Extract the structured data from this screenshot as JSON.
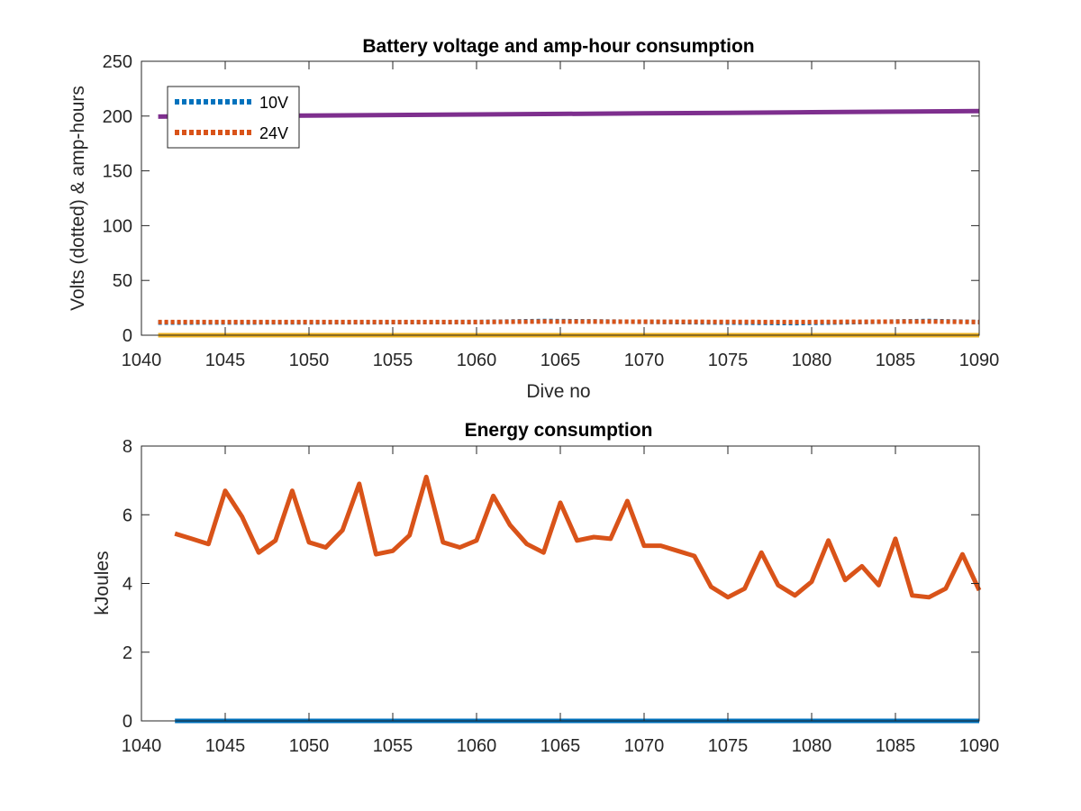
{
  "chart_data": [
    {
      "type": "line",
      "title": "Battery voltage and amp-hour consumption",
      "xlabel": "Dive no",
      "ylabel": "Volts (dotted) & amp-hours",
      "xlim": [
        1040,
        1090
      ],
      "ylim": [
        0,
        250
      ],
      "xticks": [
        "1040",
        "1045",
        "1050",
        "1055",
        "1060",
        "1065",
        "1070",
        "1075",
        "1080",
        "1085",
        "1090"
      ],
      "yticks": [
        "0",
        "50",
        "100",
        "150",
        "200",
        "250"
      ],
      "grid": false,
      "legend_position": "top-left",
      "series": [
        {
          "name": "10V",
          "color": "#0072BD",
          "style": "dotted",
          "in_legend": true,
          "x": [
            1041,
            1060,
            1064,
            1079,
            1087,
            1090
          ],
          "y": [
            11.5,
            12,
            13,
            11,
            13,
            12
          ]
        },
        {
          "name": "24V",
          "color": "#D95319",
          "style": "dotted",
          "in_legend": true,
          "x": [
            1041,
            1060,
            1064,
            1079,
            1087,
            1090
          ],
          "y": [
            12,
            12,
            12.5,
            12,
            12.5,
            12
          ]
        },
        {
          "color": "#EDB120",
          "style": "solid",
          "in_legend": false,
          "x": [
            1041,
            1090
          ],
          "y": [
            0,
            0
          ]
        },
        {
          "color": "#7E2F8E",
          "style": "solid",
          "in_legend": false,
          "x": [
            1041,
            1045,
            1050,
            1055,
            1060,
            1065,
            1070,
            1075,
            1080,
            1085,
            1090
          ],
          "y": [
            199.5,
            200,
            200.5,
            201,
            201.5,
            202,
            202.5,
            203,
            203.5,
            204,
            204.5
          ]
        }
      ]
    },
    {
      "type": "line",
      "title": "Energy consumption",
      "xlabel": "",
      "ylabel": "kJoules",
      "xlim": [
        1040,
        1090
      ],
      "ylim": [
        0,
        8
      ],
      "xticks": [
        "1040",
        "1045",
        "1050",
        "1055",
        "1060",
        "1065",
        "1070",
        "1075",
        "1080",
        "1085",
        "1090"
      ],
      "yticks": [
        "0",
        "2",
        "4",
        "6",
        "8"
      ],
      "grid": false,
      "series": [
        {
          "color": "#0072BD",
          "style": "solid",
          "x": [
            1042,
            1090
          ],
          "y": [
            0,
            0
          ]
        },
        {
          "color": "#D95319",
          "style": "solid",
          "x": [
            1042,
            1043,
            1044,
            1045,
            1046,
            1047,
            1048,
            1049,
            1050,
            1051,
            1052,
            1053,
            1054,
            1055,
            1056,
            1057,
            1058,
            1059,
            1060,
            1061,
            1062,
            1063,
            1064,
            1065,
            1066,
            1067,
            1068,
            1069,
            1070,
            1071,
            1072,
            1073,
            1074,
            1075,
            1076,
            1077,
            1078,
            1079,
            1080,
            1081,
            1082,
            1083,
            1084,
            1085,
            1086,
            1087,
            1088,
            1089,
            1090
          ],
          "y": [
            5.45,
            5.3,
            5.15,
            6.7,
            5.95,
            4.9,
            5.25,
            6.7,
            5.2,
            5.05,
            5.55,
            6.9,
            4.85,
            4.95,
            5.4,
            7.1,
            5.2,
            5.05,
            5.25,
            6.55,
            5.7,
            5.15,
            4.9,
            6.35,
            5.25,
            5.35,
            5.3,
            6.4,
            5.1,
            5.1,
            4.95,
            4.8,
            3.9,
            3.6,
            3.85,
            4.9,
            3.95,
            3.65,
            4.05,
            5.25,
            4.1,
            4.5,
            3.95,
            5.3,
            3.65,
            3.6,
            3.85,
            4.85,
            3.8
          ]
        }
      ]
    }
  ]
}
